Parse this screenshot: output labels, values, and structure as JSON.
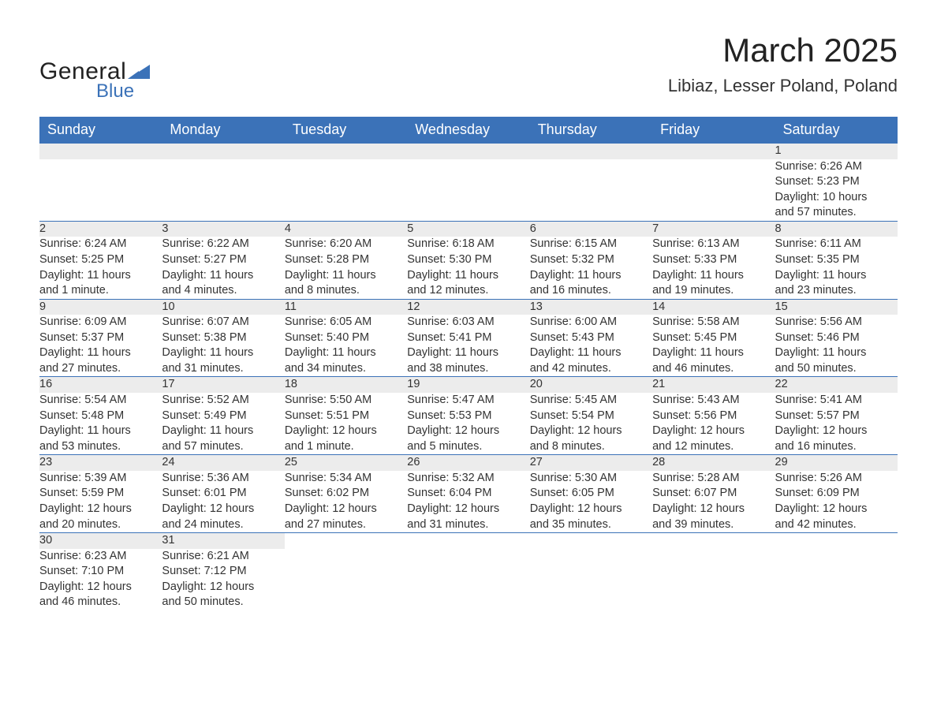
{
  "logo": {
    "text1": "General",
    "text2": "Blue",
    "triangle_color": "#3b72b8"
  },
  "title": "March 2025",
  "location": "Libiaz, Lesser Poland, Poland",
  "colors": {
    "header_bg": "#3b72b8",
    "header_text": "#ffffff",
    "daynum_bg": "#ececec",
    "border_accent": "#3b72b8",
    "body_text": "#333333",
    "background": "#ffffff"
  },
  "typography": {
    "title_fontsize": 42,
    "location_fontsize": 22,
    "weekday_fontsize": 18,
    "cell_fontsize": 14.5,
    "font_family": "Arial"
  },
  "weekdays": [
    "Sunday",
    "Monday",
    "Tuesday",
    "Wednesday",
    "Thursday",
    "Friday",
    "Saturday"
  ],
  "weeks": [
    [
      null,
      null,
      null,
      null,
      null,
      null,
      {
        "n": "1",
        "sunrise": "Sunrise: 6:26 AM",
        "sunset": "Sunset: 5:23 PM",
        "d1": "Daylight: 10 hours",
        "d2": "and 57 minutes."
      }
    ],
    [
      {
        "n": "2",
        "sunrise": "Sunrise: 6:24 AM",
        "sunset": "Sunset: 5:25 PM",
        "d1": "Daylight: 11 hours",
        "d2": "and 1 minute."
      },
      {
        "n": "3",
        "sunrise": "Sunrise: 6:22 AM",
        "sunset": "Sunset: 5:27 PM",
        "d1": "Daylight: 11 hours",
        "d2": "and 4 minutes."
      },
      {
        "n": "4",
        "sunrise": "Sunrise: 6:20 AM",
        "sunset": "Sunset: 5:28 PM",
        "d1": "Daylight: 11 hours",
        "d2": "and 8 minutes."
      },
      {
        "n": "5",
        "sunrise": "Sunrise: 6:18 AM",
        "sunset": "Sunset: 5:30 PM",
        "d1": "Daylight: 11 hours",
        "d2": "and 12 minutes."
      },
      {
        "n": "6",
        "sunrise": "Sunrise: 6:15 AM",
        "sunset": "Sunset: 5:32 PM",
        "d1": "Daylight: 11 hours",
        "d2": "and 16 minutes."
      },
      {
        "n": "7",
        "sunrise": "Sunrise: 6:13 AM",
        "sunset": "Sunset: 5:33 PM",
        "d1": "Daylight: 11 hours",
        "d2": "and 19 minutes."
      },
      {
        "n": "8",
        "sunrise": "Sunrise: 6:11 AM",
        "sunset": "Sunset: 5:35 PM",
        "d1": "Daylight: 11 hours",
        "d2": "and 23 minutes."
      }
    ],
    [
      {
        "n": "9",
        "sunrise": "Sunrise: 6:09 AM",
        "sunset": "Sunset: 5:37 PM",
        "d1": "Daylight: 11 hours",
        "d2": "and 27 minutes."
      },
      {
        "n": "10",
        "sunrise": "Sunrise: 6:07 AM",
        "sunset": "Sunset: 5:38 PM",
        "d1": "Daylight: 11 hours",
        "d2": "and 31 minutes."
      },
      {
        "n": "11",
        "sunrise": "Sunrise: 6:05 AM",
        "sunset": "Sunset: 5:40 PM",
        "d1": "Daylight: 11 hours",
        "d2": "and 34 minutes."
      },
      {
        "n": "12",
        "sunrise": "Sunrise: 6:03 AM",
        "sunset": "Sunset: 5:41 PM",
        "d1": "Daylight: 11 hours",
        "d2": "and 38 minutes."
      },
      {
        "n": "13",
        "sunrise": "Sunrise: 6:00 AM",
        "sunset": "Sunset: 5:43 PM",
        "d1": "Daylight: 11 hours",
        "d2": "and 42 minutes."
      },
      {
        "n": "14",
        "sunrise": "Sunrise: 5:58 AM",
        "sunset": "Sunset: 5:45 PM",
        "d1": "Daylight: 11 hours",
        "d2": "and 46 minutes."
      },
      {
        "n": "15",
        "sunrise": "Sunrise: 5:56 AM",
        "sunset": "Sunset: 5:46 PM",
        "d1": "Daylight: 11 hours",
        "d2": "and 50 minutes."
      }
    ],
    [
      {
        "n": "16",
        "sunrise": "Sunrise: 5:54 AM",
        "sunset": "Sunset: 5:48 PM",
        "d1": "Daylight: 11 hours",
        "d2": "and 53 minutes."
      },
      {
        "n": "17",
        "sunrise": "Sunrise: 5:52 AM",
        "sunset": "Sunset: 5:49 PM",
        "d1": "Daylight: 11 hours",
        "d2": "and 57 minutes."
      },
      {
        "n": "18",
        "sunrise": "Sunrise: 5:50 AM",
        "sunset": "Sunset: 5:51 PM",
        "d1": "Daylight: 12 hours",
        "d2": "and 1 minute."
      },
      {
        "n": "19",
        "sunrise": "Sunrise: 5:47 AM",
        "sunset": "Sunset: 5:53 PM",
        "d1": "Daylight: 12 hours",
        "d2": "and 5 minutes."
      },
      {
        "n": "20",
        "sunrise": "Sunrise: 5:45 AM",
        "sunset": "Sunset: 5:54 PM",
        "d1": "Daylight: 12 hours",
        "d2": "and 8 minutes."
      },
      {
        "n": "21",
        "sunrise": "Sunrise: 5:43 AM",
        "sunset": "Sunset: 5:56 PM",
        "d1": "Daylight: 12 hours",
        "d2": "and 12 minutes."
      },
      {
        "n": "22",
        "sunrise": "Sunrise: 5:41 AM",
        "sunset": "Sunset: 5:57 PM",
        "d1": "Daylight: 12 hours",
        "d2": "and 16 minutes."
      }
    ],
    [
      {
        "n": "23",
        "sunrise": "Sunrise: 5:39 AM",
        "sunset": "Sunset: 5:59 PM",
        "d1": "Daylight: 12 hours",
        "d2": "and 20 minutes."
      },
      {
        "n": "24",
        "sunrise": "Sunrise: 5:36 AM",
        "sunset": "Sunset: 6:01 PM",
        "d1": "Daylight: 12 hours",
        "d2": "and 24 minutes."
      },
      {
        "n": "25",
        "sunrise": "Sunrise: 5:34 AM",
        "sunset": "Sunset: 6:02 PM",
        "d1": "Daylight: 12 hours",
        "d2": "and 27 minutes."
      },
      {
        "n": "26",
        "sunrise": "Sunrise: 5:32 AM",
        "sunset": "Sunset: 6:04 PM",
        "d1": "Daylight: 12 hours",
        "d2": "and 31 minutes."
      },
      {
        "n": "27",
        "sunrise": "Sunrise: 5:30 AM",
        "sunset": "Sunset: 6:05 PM",
        "d1": "Daylight: 12 hours",
        "d2": "and 35 minutes."
      },
      {
        "n": "28",
        "sunrise": "Sunrise: 5:28 AM",
        "sunset": "Sunset: 6:07 PM",
        "d1": "Daylight: 12 hours",
        "d2": "and 39 minutes."
      },
      {
        "n": "29",
        "sunrise": "Sunrise: 5:26 AM",
        "sunset": "Sunset: 6:09 PM",
        "d1": "Daylight: 12 hours",
        "d2": "and 42 minutes."
      }
    ],
    [
      {
        "n": "30",
        "sunrise": "Sunrise: 6:23 AM",
        "sunset": "Sunset: 7:10 PM",
        "d1": "Daylight: 12 hours",
        "d2": "and 46 minutes."
      },
      {
        "n": "31",
        "sunrise": "Sunrise: 6:21 AM",
        "sunset": "Sunset: 7:12 PM",
        "d1": "Daylight: 12 hours",
        "d2": "and 50 minutes."
      },
      null,
      null,
      null,
      null,
      null
    ]
  ]
}
